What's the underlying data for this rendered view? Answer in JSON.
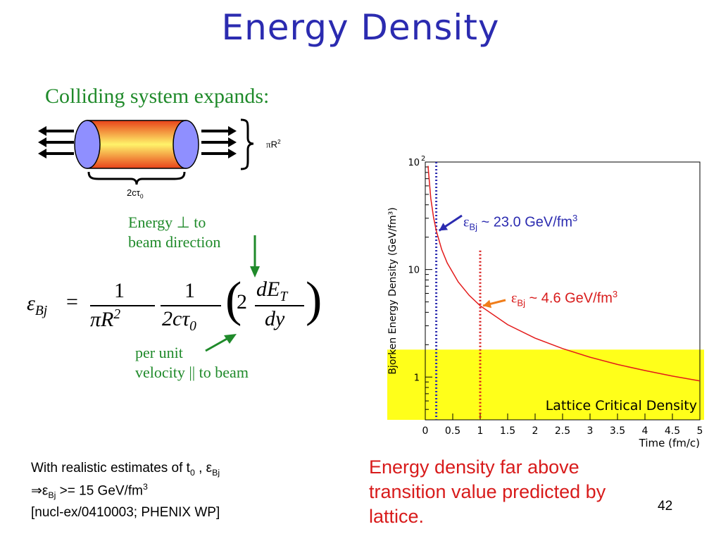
{
  "slide": {
    "title": "Energy Density",
    "page_number": "42"
  },
  "diagram": {
    "heading": "Colliding system expands:",
    "radius_label_pi": "π",
    "radius_label_r": "R",
    "radius_label_exp": "2",
    "length_label_prefix": "2cτ",
    "length_label_sub": "0",
    "energy_note_line1": "Energy ⊥ to",
    "energy_note_line2": "beam direction",
    "velocity_note_line1": "per unit",
    "velocity_note_line2": "velocity || to beam"
  },
  "formula": {
    "lhs": "ε",
    "lhs_sub": "Bj",
    "equals": "=",
    "num1": "1",
    "den1_pi": "π",
    "den1_r": "R",
    "den1_exp": "2",
    "num2": "1",
    "den2": "2cτ",
    "den2_sub": "0",
    "paren_coef": "2",
    "dE": "dE",
    "dE_sub": "T",
    "dy": "dy"
  },
  "notes": {
    "line1_text": "With realistic estimates of t",
    "line1_sub": "0",
    "line1_mid": " , ε",
    "line1_sub2": "Bj",
    "line2_arrow": "⇒ε",
    "line2_sub": "Bj",
    "line2_rest": " >= 15 GeV/fm",
    "line2_sup": "3",
    "line3": "[nucl-ex/0410003; PHENIX WP]"
  },
  "conclusion": {
    "line1": "Energy density far above",
    "line2": "transition value predicted by",
    "line3": "lattice."
  },
  "chart_data": {
    "type": "line",
    "xlabel": "Time (fm/c)",
    "ylabel": "Bjorken Energy Density (GeV/fm³)",
    "x_ticks": [
      "0",
      "0.5",
      "1",
      "1.5",
      "2",
      "2.5",
      "3",
      "3.5",
      "4",
      "4.5",
      "5"
    ],
    "y_ticks": [
      {
        "base": "1",
        "exp": ""
      },
      {
        "base": "10",
        "exp": ""
      },
      {
        "base": "10",
        "exp": "2"
      }
    ],
    "xlim": [
      0,
      5
    ],
    "ylim": [
      0.4,
      100
    ],
    "y_scale": "log",
    "series": [
      {
        "x": [
          0.05,
          0.1,
          0.15,
          0.2,
          0.3,
          0.4,
          0.6,
          0.8,
          1.0,
          1.5,
          2.0,
          2.5,
          3.0,
          3.5,
          4.0,
          4.5,
          5.0
        ],
        "y": [
          92,
          46,
          30.7,
          23.0,
          15.3,
          11.5,
          7.67,
          5.75,
          4.6,
          3.07,
          2.3,
          1.84,
          1.53,
          1.31,
          1.15,
          1.02,
          0.92
        ]
      }
    ],
    "critical_band": {
      "y_from": 0.4,
      "y_to": 1.8,
      "label": "Lattice Critical Density"
    },
    "vlines": [
      {
        "x": 0.2,
        "style": "dotted",
        "color": "#2b2bb0"
      },
      {
        "x": 1.0,
        "style": "dotted",
        "color": "#d81b1b"
      }
    ],
    "annotations": [
      {
        "eps": "ε",
        "sub": "Bj",
        "text": " ~  23.0 GeV/fm",
        "sup": "3",
        "color": "#2b2bb0"
      },
      {
        "eps": "ε",
        "sub": "Bj",
        "text": " ~ 4.6 GeV/fm",
        "sup": "3",
        "color": "#d81b1b"
      }
    ]
  }
}
